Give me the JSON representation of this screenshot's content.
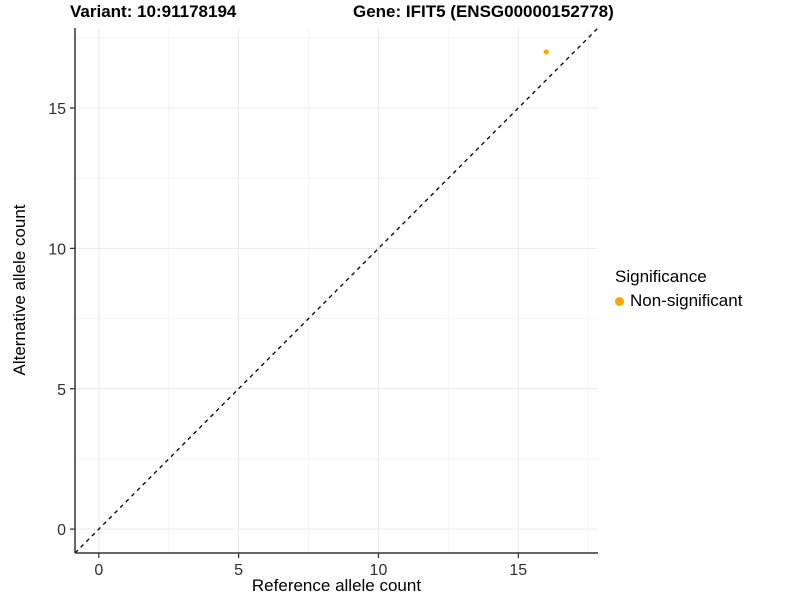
{
  "figure": {
    "title_left": "Variant: 10:91178194",
    "title_right": "Gene: IFIT5 (ENSG00000152778)"
  },
  "chart_data": {
    "type": "scatter",
    "title": "Variant: 10:91178194    Gene: IFIT5 (ENSG00000152778)",
    "xlabel": "Reference allele count",
    "ylabel": "Alternative allele count",
    "xlim": [
      -0.85,
      17.85
    ],
    "ylim": [
      -0.85,
      17.85
    ],
    "x_ticks": [
      0,
      5,
      10,
      15
    ],
    "y_ticks": [
      0,
      5,
      10,
      15
    ],
    "x_minor_ticks": [
      2.5,
      7.5,
      12.5,
      17.5
    ],
    "y_minor_ticks": [
      2.5,
      7.5,
      12.5,
      17.5
    ],
    "grid": "major+minor",
    "series": [
      {
        "name": "Non-significant",
        "color": "#FFA500",
        "points": [
          {
            "x": 16,
            "y": 17
          }
        ]
      }
    ],
    "reference_line": {
      "type": "identity",
      "equation": "y = x",
      "style": "dashed",
      "color": "#000000"
    },
    "legend": {
      "title": "Significance",
      "position": "right",
      "items": [
        {
          "label": "Non-significant",
          "color": "#FFA500"
        }
      ]
    }
  },
  "colors": {
    "background": "#ffffff",
    "axis_line": "#333333",
    "tick_label": "#303030",
    "grid_major": "#e9e9e9",
    "grid_minor": "#f4f4f4",
    "point": "#FFA500"
  }
}
